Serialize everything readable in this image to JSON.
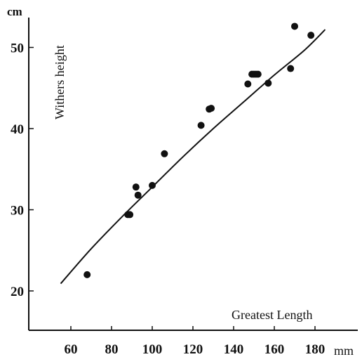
{
  "chart_data": {
    "type": "scatter",
    "title": "",
    "xlabel": "Greatest Length",
    "ylabel": "Withers height",
    "x_unit": "mm",
    "y_unit": "cm",
    "xlim": [
      45,
      195
    ],
    "ylim": [
      15,
      55
    ],
    "x_ticks": [
      60,
      80,
      100,
      120,
      140,
      160,
      180
    ],
    "x_tick_labels": [
      "60",
      "80",
      "100",
      "120",
      "140",
      "160",
      "180"
    ],
    "y_ticks": [
      20,
      30,
      40,
      50
    ],
    "y_tick_labels": [
      "20",
      "30",
      "40",
      "50"
    ],
    "grid": false,
    "points": [
      {
        "x": 68,
        "y": 22.0
      },
      {
        "x": 88,
        "y": 29.4
      },
      {
        "x": 89,
        "y": 29.4
      },
      {
        "x": 92,
        "y": 32.8
      },
      {
        "x": 93,
        "y": 31.8
      },
      {
        "x": 100,
        "y": 33.0
      },
      {
        "x": 106,
        "y": 36.9
      },
      {
        "x": 124,
        "y": 40.4
      },
      {
        "x": 128,
        "y": 42.4
      },
      {
        "x": 129,
        "y": 42.5
      },
      {
        "x": 147,
        "y": 45.5
      },
      {
        "x": 149,
        "y": 46.7
      },
      {
        "x": 150,
        "y": 46.7
      },
      {
        "x": 151,
        "y": 46.7
      },
      {
        "x": 152,
        "y": 46.7
      },
      {
        "x": 157,
        "y": 45.6
      },
      {
        "x": 168,
        "y": 47.4
      },
      {
        "x": 170,
        "y": 52.6
      },
      {
        "x": 178,
        "y": 51.5
      }
    ],
    "fit_curve": [
      {
        "x": 55,
        "y": 20.9
      },
      {
        "x": 70,
        "y": 25.2
      },
      {
        "x": 85,
        "y": 29.1
      },
      {
        "x": 100,
        "y": 32.8
      },
      {
        "x": 115,
        "y": 36.5
      },
      {
        "x": 130,
        "y": 40.0
      },
      {
        "x": 145,
        "y": 43.3
      },
      {
        "x": 160,
        "y": 46.6
      },
      {
        "x": 175,
        "y": 49.7
      },
      {
        "x": 185,
        "y": 52.2
      }
    ]
  }
}
